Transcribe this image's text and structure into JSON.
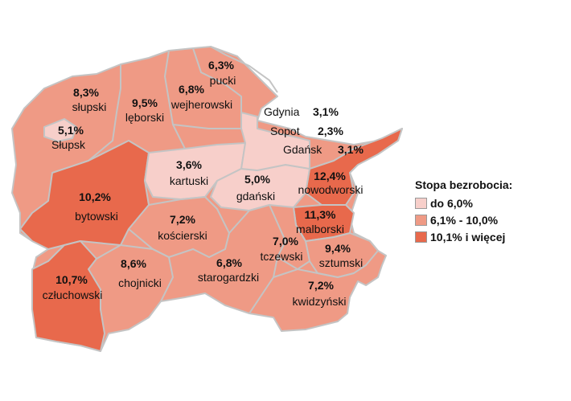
{
  "colors": {
    "low": "#f7cfca",
    "mid": "#ef9a85",
    "high": "#e8694c",
    "border": "#c4c4c4",
    "sea_line": "#c4c4c4"
  },
  "legend": {
    "title": "Stopa bezrobocia:",
    "items": [
      {
        "label": "do 6,0%",
        "color": "#f7cfca"
      },
      {
        "label": "6,1% - 10,0%",
        "color": "#ef9a85"
      },
      {
        "label": "10,1% i więcej",
        "color": "#e8694c"
      }
    ]
  },
  "regions": [
    {
      "id": "slupski",
      "name": "słupski",
      "value": "8,3%",
      "class": "mid"
    },
    {
      "id": "slupsk",
      "name": "Słupsk",
      "value": "5,1%",
      "class": "low"
    },
    {
      "id": "leborski",
      "name": "lęborski",
      "value": "9,5%",
      "class": "mid"
    },
    {
      "id": "wejherowski",
      "name": "wejherowski",
      "value": "6,8%",
      "class": "mid"
    },
    {
      "id": "pucki",
      "name": "pucki",
      "value": "6,3%",
      "class": "mid"
    },
    {
      "id": "bytowski",
      "name": "bytowski",
      "value": "10,2%",
      "class": "high"
    },
    {
      "id": "kartuski",
      "name": "kartuski",
      "value": "3,6%",
      "class": "low"
    },
    {
      "id": "gdanski",
      "name": "gdański",
      "value": "5,0%",
      "class": "low"
    },
    {
      "id": "nowodworski",
      "name": "nowodworski",
      "value": "12,4%",
      "class": "high"
    },
    {
      "id": "koscierski",
      "name": "kościerski",
      "value": "7,2%",
      "class": "mid"
    },
    {
      "id": "malborski",
      "name": "malborski",
      "value": "11,3%",
      "class": "high"
    },
    {
      "id": "tczewski",
      "name": "tczewski",
      "value": "7,0%",
      "class": "mid"
    },
    {
      "id": "sztumski",
      "name": "sztumski",
      "value": "9,4%",
      "class": "mid"
    },
    {
      "id": "chojnicki",
      "name": "chojnicki",
      "value": "8,6%",
      "class": "mid"
    },
    {
      "id": "starogardzki",
      "name": "starogardzki",
      "value": "6,8%",
      "class": "mid"
    },
    {
      "id": "czluchowski",
      "name": "człuchowski",
      "value": "10,7%",
      "class": "high"
    },
    {
      "id": "kwidzynski",
      "name": "kwidzyński",
      "value": "7,2%",
      "class": "mid"
    },
    {
      "id": "gdynia",
      "name": "Gdynia",
      "value": "3,1%",
      "class": "low"
    },
    {
      "id": "sopot",
      "name": "Sopot",
      "value": "2,3%",
      "class": "low"
    },
    {
      "id": "gdansk",
      "name": "Gdańsk",
      "value": "3,1%",
      "class": "low"
    }
  ]
}
